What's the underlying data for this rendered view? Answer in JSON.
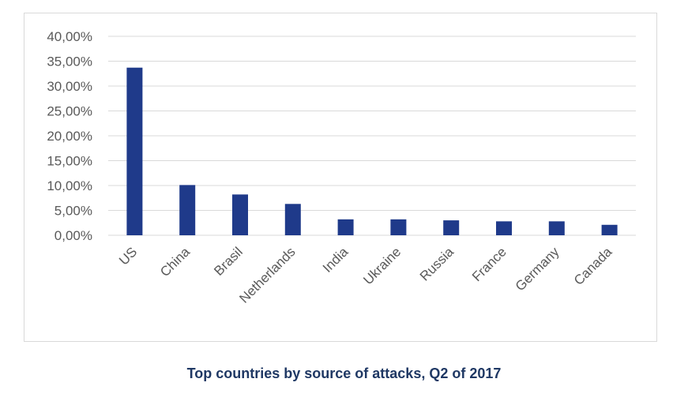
{
  "caption": "Top countries by source of attacks, Q2 of 2017",
  "chart_data": {
    "type": "bar",
    "title": "",
    "xlabel": "",
    "ylabel": "",
    "categories": [
      "US",
      "China",
      "Brasil",
      "Netherlands",
      "India",
      "Ukraine",
      "Russia",
      "France",
      "Germany",
      "Canada"
    ],
    "values": [
      33.7,
      10.1,
      8.2,
      6.3,
      3.2,
      3.2,
      3.0,
      2.8,
      2.8,
      2.1
    ],
    "ylim": [
      0,
      40
    ],
    "yticks": [
      0,
      5,
      10,
      15,
      20,
      25,
      30,
      35,
      40
    ],
    "ytick_labels": [
      "0,00%",
      "5,00%",
      "10,00%",
      "15,00%",
      "20,00%",
      "25,00%",
      "30,00%",
      "35,00%",
      "40,00%"
    ],
    "grid": true,
    "legend": "none",
    "colors": {
      "bar": "#1f3a8a",
      "grid": "#d9d9d9",
      "tick_text": "#595959"
    }
  }
}
